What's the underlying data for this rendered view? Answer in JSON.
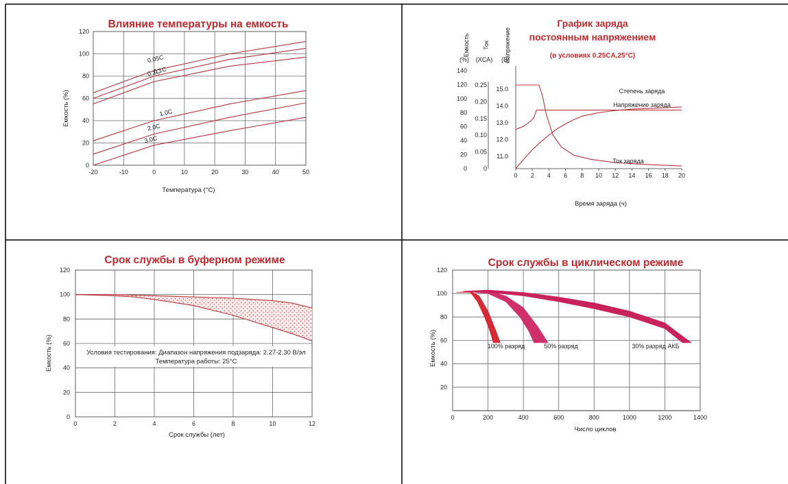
{
  "colors": {
    "curve": "#b8343a",
    "title": "#c0282e",
    "grid": "#555555",
    "fill_dark": "#d62b36",
    "fill_mid": "#d0306a",
    "fill_light": "#c7235a"
  },
  "chart_data": [
    {
      "type": "line",
      "title": "Влияние температуры на емкость",
      "xlabel": "Температура (°C)",
      "ylabel": "Емкость (%)",
      "xlim": [
        -20,
        50
      ],
      "ylim": [
        0,
        120
      ],
      "xticks": [
        "-20",
        "-10",
        "0",
        "10",
        "20",
        "30",
        "40",
        "50"
      ],
      "yticks": [
        "0",
        "20",
        "40",
        "60",
        "80",
        "100",
        "120"
      ],
      "grid": true,
      "series": [
        {
          "name": "0.05C",
          "x": [
            -20,
            0,
            25,
            50
          ],
          "y": [
            65,
            85,
            100,
            111
          ]
        },
        {
          "name": "0.1C",
          "x": [
            -20,
            0,
            25,
            50
          ],
          "y": [
            60,
            80,
            95,
            105
          ]
        },
        {
          "name": "0.2C",
          "x": [
            -20,
            0,
            25,
            50
          ],
          "y": [
            55,
            75,
            89,
            97
          ]
        },
        {
          "name": "1.0C",
          "x": [
            -20,
            0,
            25,
            50
          ],
          "y": [
            22,
            40,
            55,
            67
          ]
        },
        {
          "name": "2.0C",
          "x": [
            -20,
            0,
            25,
            50
          ],
          "y": [
            10,
            28,
            43,
            56
          ]
        },
        {
          "name": "3.0C",
          "x": [
            -20,
            0,
            25,
            50
          ],
          "y": [
            0,
            18,
            31,
            43
          ]
        }
      ]
    },
    {
      "type": "line",
      "title": "График заряда",
      "title2": "постоянным напряжением",
      "subtitle": "(в условиях 0.25CA,25°C)",
      "xlabel": "Время заряда (ч)",
      "xlim": [
        0,
        20
      ],
      "xticks": [
        "0",
        "2",
        "4",
        "6",
        "8",
        "10",
        "12",
        "14",
        "16",
        "18",
        "20"
      ],
      "axes": [
        {
          "label": "Емкость",
          "unit": "(%)",
          "ticks": [
            "0",
            "20",
            "40",
            "60",
            "80",
            "100",
            "120",
            "140"
          ]
        },
        {
          "label": "Ток",
          "unit": "(XCA)",
          "ticks": [
            "0",
            "0.05",
            "0.10",
            "0.15",
            "0.20",
            "0.25"
          ]
        },
        {
          "label": "Напряжение",
          "unit": "(В)",
          "ticks": [
            "11.0",
            "12.0",
            "13.0",
            "14.0",
            "15.0"
          ]
        }
      ],
      "series": [
        {
          "name": "Степень заряда",
          "x": [
            0,
            1,
            2,
            3,
            4,
            5,
            6,
            7,
            8,
            10,
            12,
            14,
            16,
            18,
            20
          ],
          "y": [
            0,
            14,
            27,
            38,
            48,
            57,
            64,
            70,
            75,
            80,
            83,
            85,
            86,
            87,
            88
          ]
        },
        {
          "name": "Напряжение заряда",
          "x": [
            0,
            1,
            1.8,
            2.2,
            2.5,
            3,
            5,
            10,
            15,
            20
          ],
          "y": [
            12.6,
            12.8,
            13.1,
            13.3,
            13.75,
            13.75,
            13.75,
            13.75,
            13.75,
            13.75
          ]
        },
        {
          "name": "Ток заряда",
          "x": [
            0,
            2.8,
            3.2,
            3.7,
            4.5,
            5.5,
            7,
            9,
            12,
            16,
            20
          ],
          "y": [
            0.25,
            0.25,
            0.22,
            0.16,
            0.1,
            0.065,
            0.04,
            0.028,
            0.018,
            0.012,
            0.008
          ]
        }
      ]
    },
    {
      "type": "area",
      "title": "Срок службы в буферном режиме",
      "xlabel": "Срок службы (лет)",
      "ylabel": "Емкость (%)",
      "xlim": [
        0,
        12
      ],
      "ylim": [
        0,
        120
      ],
      "xticks": [
        "0",
        "2",
        "4",
        "6",
        "8",
        "10",
        "12"
      ],
      "yticks": [
        "0",
        "20",
        "40",
        "60",
        "80",
        "100",
        "120"
      ],
      "grid": true,
      "annotation_line1": "Условия тестирования: Диапазон напряжения подзаряда: 2.27-2.30 В/эл",
      "annotation_line2": "Температура работы: 25°C",
      "band_upper": {
        "x": [
          0,
          2,
          4,
          6,
          8,
          9,
          10,
          11,
          12
        ],
        "y": [
          100,
          100,
          99,
          98,
          97,
          96,
          95,
          93,
          89
        ]
      },
      "band_lower": {
        "x": [
          0,
          2,
          3,
          4,
          6,
          8,
          9,
          10,
          11,
          12
        ],
        "y": [
          100,
          99,
          98,
          96,
          91,
          83,
          78,
          73,
          68,
          62
        ]
      }
    },
    {
      "type": "area",
      "title": "Срок службы в циклическом режиме",
      "xlabel": "Число циклов",
      "ylabel": "Емкость (%)",
      "xlim": [
        0,
        1400
      ],
      "ylim": [
        0,
        120
      ],
      "xticks": [
        "0",
        "200",
        "400",
        "600",
        "800",
        "1000",
        "1200",
        "1400"
      ],
      "yticks": [
        "20",
        "40",
        "60",
        "80",
        "100",
        "120"
      ],
      "grid": true,
      "bands": [
        {
          "name": "100% разряд",
          "upper": {
            "x": [
              20,
              100,
              150,
              200,
              240,
              270
            ],
            "y": [
              101,
              102,
              98,
              85,
              70,
              58
            ]
          },
          "lower": {
            "x": [
              20,
              100,
              140,
              180,
              210,
              230
            ],
            "y": [
              101,
              101,
              93,
              80,
              68,
              58
            ]
          }
        },
        {
          "name": "50% разряд",
          "upper": {
            "x": [
              60,
              200,
              300,
              400,
              480,
              540
            ],
            "y": [
              102,
              102,
              98,
              88,
              72,
              58
            ]
          },
          "lower": {
            "x": [
              60,
              200,
              300,
              380,
              430,
              460
            ],
            "y": [
              102,
              100,
              93,
              80,
              68,
              58
            ]
          }
        },
        {
          "name": "30% разряд АКБ",
          "upper": {
            "x": [
              60,
              200,
              400,
              600,
              800,
              1000,
              1200,
              1350
            ],
            "y": [
              102,
              103,
              101,
              97,
              92,
              85,
              75,
              58
            ]
          },
          "lower": {
            "x": [
              60,
              200,
              400,
              600,
              800,
              1000,
              1200,
              1300
            ],
            "y": [
              102,
              101,
              98,
              93,
              87,
              80,
              70,
              58
            ]
          }
        }
      ]
    }
  ]
}
